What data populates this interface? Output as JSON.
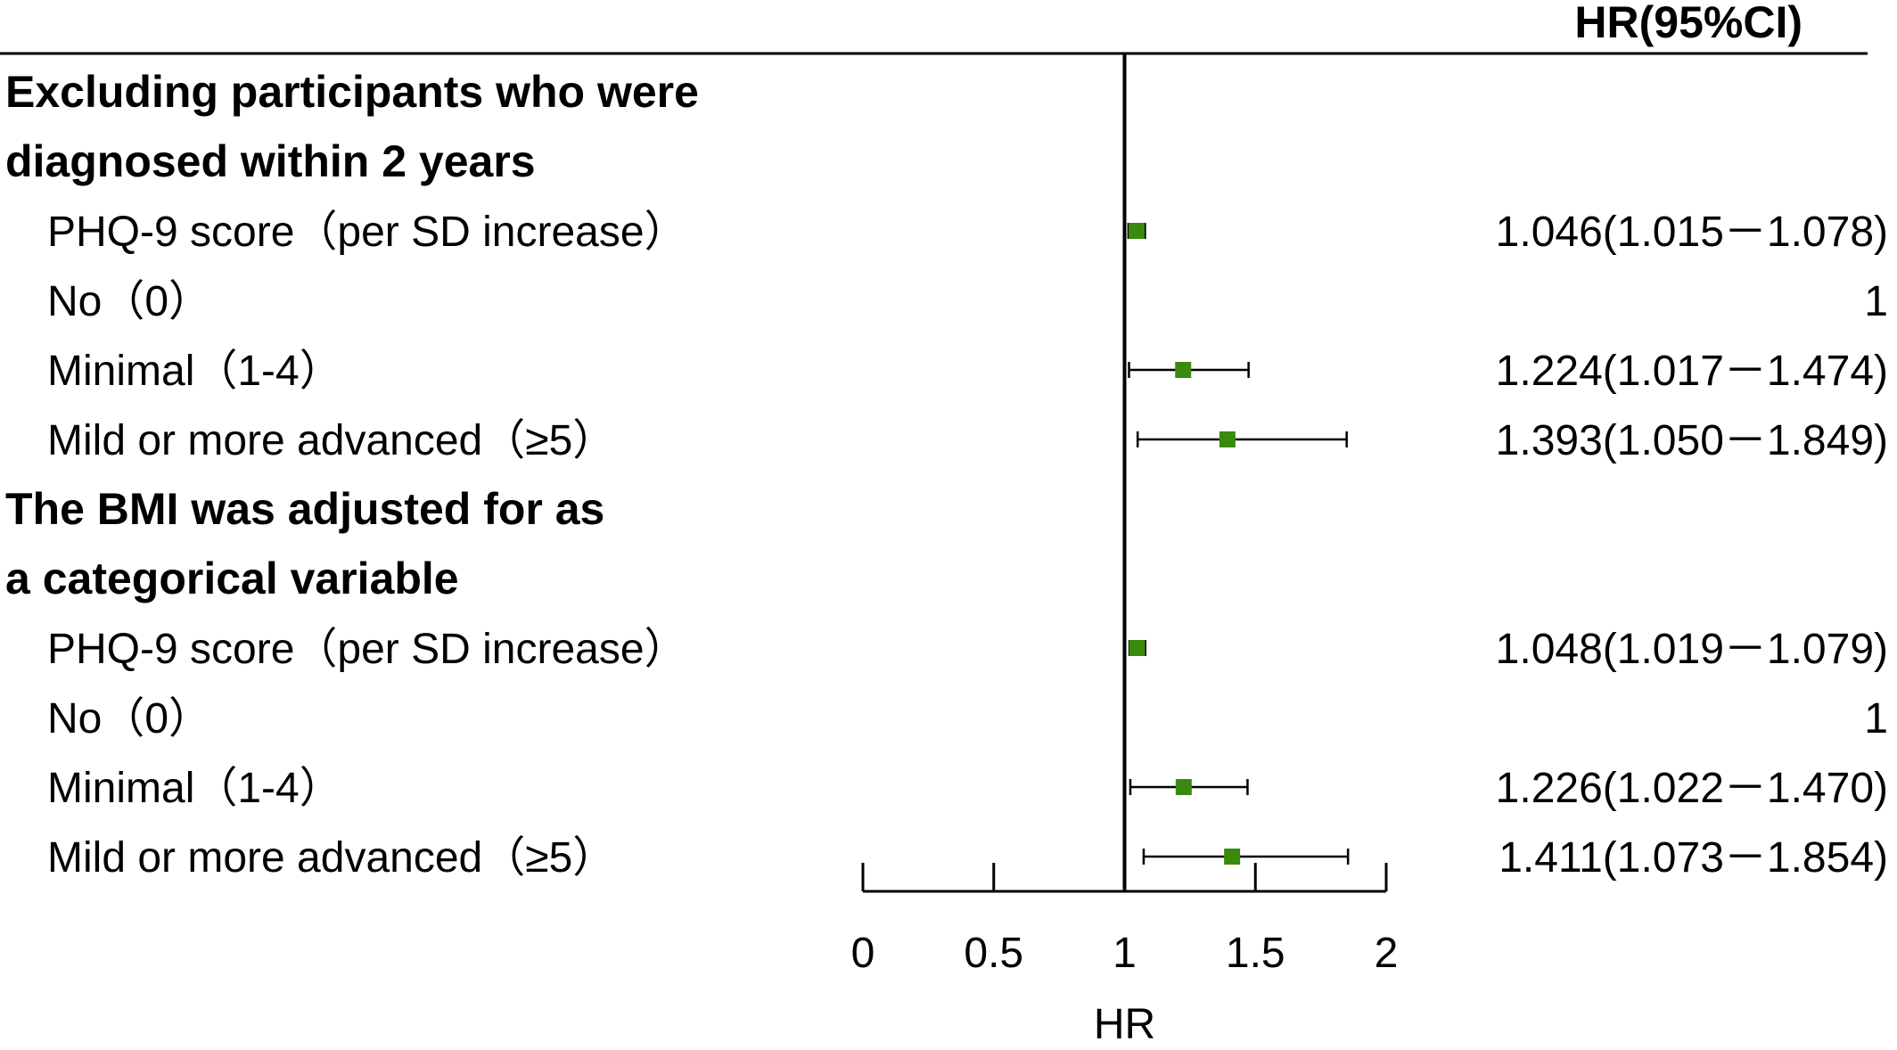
{
  "chart_data": {
    "type": "forest",
    "header": "HR(95%CI)",
    "xlabel": "HR",
    "xlim": [
      0,
      2
    ],
    "xticks": [
      "0",
      "0.5",
      "1",
      "1.5",
      "2"
    ],
    "reference_line": 1,
    "marker_color": "#3a8a10",
    "sections": [
      {
        "title_lines": [
          "Excluding participants who were",
          "diagnosed within 2 years"
        ],
        "rows": [
          {
            "label": "PHQ-9 score（per SD increase）",
            "hr": 1.046,
            "lower": 1.015,
            "upper": 1.078,
            "text": "1.046(1.015－1.078)"
          },
          {
            "label": "No（0）",
            "hr": 1,
            "lower": null,
            "upper": null,
            "text": "1"
          },
          {
            "label": "Minimal（1-4）",
            "hr": 1.224,
            "lower": 1.017,
            "upper": 1.474,
            "text": "1.224(1.017－1.474)"
          },
          {
            "label": "Mild or more advanced（≥5）",
            "hr": 1.393,
            "lower": 1.05,
            "upper": 1.849,
            "text": "1.393(1.050－1.849)"
          }
        ]
      },
      {
        "title_lines": [
          "The BMI was adjusted for as",
          "a categorical variable"
        ],
        "rows": [
          {
            "label": "PHQ-9 score（per SD increase）",
            "hr": 1.048,
            "lower": 1.019,
            "upper": 1.079,
            "text": "1.048(1.019－1.079)"
          },
          {
            "label": "No（0）",
            "hr": 1,
            "lower": null,
            "upper": null,
            "text": "1"
          },
          {
            "label": "Minimal（1-4）",
            "hr": 1.226,
            "lower": 1.022,
            "upper": 1.47,
            "text": "1.226(1.022－1.470)"
          },
          {
            "label": "Mild or more advanced（≥5）",
            "hr": 1.411,
            "lower": 1.073,
            "upper": 1.854,
            "text": "1.411(1.073－1.854)"
          }
        ]
      }
    ]
  }
}
